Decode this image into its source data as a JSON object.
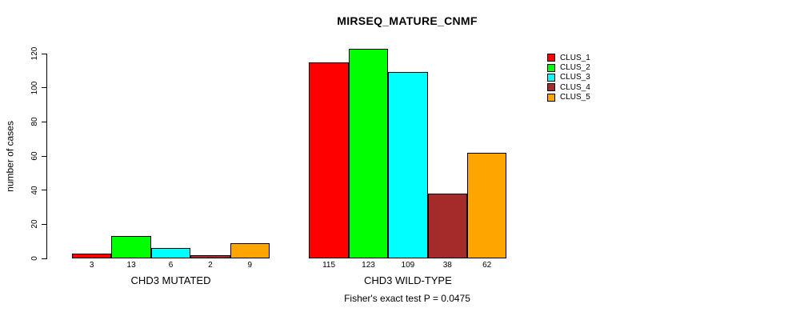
{
  "title": "MIRSEQ_MATURE_CNMF",
  "subtitle": "Fisher's exact test P = 0.0475",
  "chart_data": {
    "type": "bar",
    "grouped": true,
    "title": "MIRSEQ_MATURE_CNMF",
    "xlabel": "",
    "ylabel": "number of cases",
    "ylim": [
      0,
      120
    ],
    "yticks": [
      0,
      20,
      40,
      60,
      80,
      100,
      120
    ],
    "categories": [
      "CHD3 MUTATED",
      "CHD3 WILD-TYPE"
    ],
    "series": [
      {
        "name": "CLUS_1",
        "color": "#ff0000",
        "values": [
          3,
          115
        ]
      },
      {
        "name": "CLUS_2",
        "color": "#00ff00",
        "values": [
          13,
          123
        ]
      },
      {
        "name": "CLUS_3",
        "color": "#00ffff",
        "values": [
          6,
          109
        ]
      },
      {
        "name": "CLUS_4",
        "color": "#a52a2a",
        "values": [
          2,
          38
        ]
      },
      {
        "name": "CLUS_5",
        "color": "#ffa500",
        "values": [
          9,
          62
        ]
      }
    ],
    "bar_value_labels_shown": true,
    "legend_position": "right",
    "grid": false,
    "annotation": "Fisher's exact test P = 0.0475"
  }
}
